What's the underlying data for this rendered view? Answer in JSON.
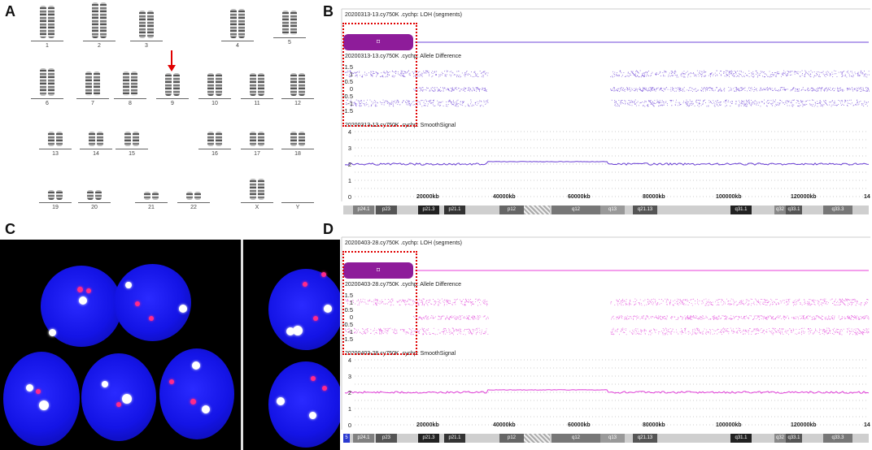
{
  "panels": {
    "a": "A",
    "b": "B",
    "c": "C",
    "d": "D"
  },
  "karyotype": {
    "labels": [
      "1",
      "2",
      "3",
      "4",
      "5",
      "6",
      "7",
      "8",
      "9",
      "10",
      "11",
      "12",
      "13",
      "14",
      "15",
      "16",
      "17",
      "18",
      "19",
      "20",
      "21",
      "22",
      "X",
      "Y"
    ],
    "highlighted": "9"
  },
  "track_b": {
    "loh_title": "20200313-13.cy750K .cychp: LOH (segments)",
    "ad_title": "20200313-13.cy750K .cychp: Allele Difference",
    "ss_title": "20200313-13.cy750K .cychp: SmoothSignal",
    "color": "#6a3fd4",
    "segment_color": "#8e1c9a",
    "segment_label": "⌑"
  },
  "track_d": {
    "loh_title": "20200403-28.cy750K .cychp: LOH (segments)",
    "ad_title": "20200403-28.cy750K .cychp: Allele Difference",
    "ss_title": "20200403-28.cy750K .cychp: SmoothSignal",
    "color": "#e040d8",
    "segment_color": "#8e1c9a",
    "segment_label": "⌑"
  },
  "ad_axis": [
    "1.5",
    "1",
    "0.5",
    "0",
    "-0.5",
    "-1",
    "-1.5"
  ],
  "ss_axis": [
    "4",
    "3",
    "2",
    "1",
    "0"
  ],
  "kb_axis": [
    "20000kb",
    "40000kb",
    "60000kb",
    "80000kb",
    "100000kb",
    "120000kb",
    "14"
  ],
  "ideogram_bands": [
    "p24.1",
    "p23",
    "p21.3",
    "p21.1",
    "p12",
    "q12",
    "q13",
    "q21.13",
    "q31.1",
    "q32",
    "q33.1",
    "q33.3"
  ],
  "ideogram_marker": "5"
}
